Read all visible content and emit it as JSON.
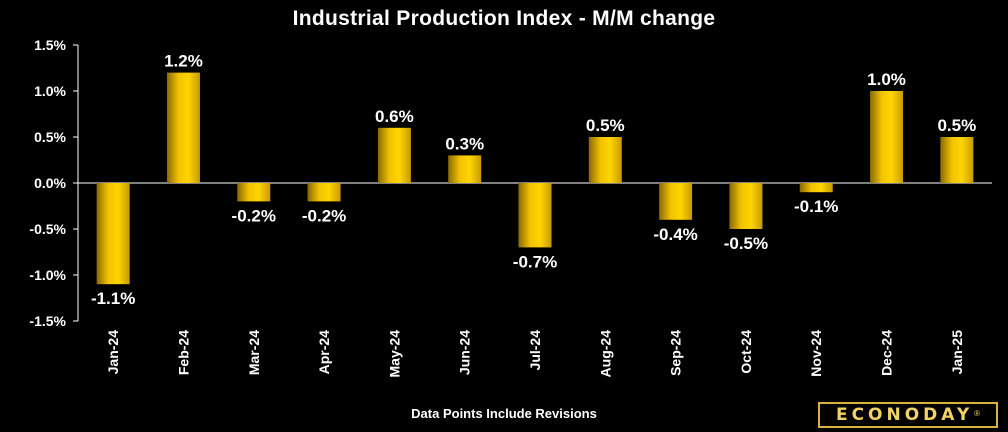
{
  "chart_data": {
    "type": "bar",
    "title": "Industrial Production Index - M/M change",
    "categories": [
      "Jan-24",
      "Feb-24",
      "Mar-24",
      "Apr-24",
      "May-24",
      "Jun-24",
      "Jul-24",
      "Aug-24",
      "Sep-24",
      "Oct-24",
      "Nov-24",
      "Dec-24",
      "Jan-25"
    ],
    "values": [
      -1.1,
      1.2,
      -0.2,
      -0.2,
      0.6,
      0.3,
      -0.7,
      0.5,
      -0.4,
      -0.5,
      -0.1,
      1.0,
      0.5
    ],
    "data_labels": [
      "-1.1%",
      "1.2%",
      "-0.2%",
      "-0.2%",
      "0.6%",
      "0.3%",
      "-0.7%",
      "0.5%",
      "-0.4%",
      "-0.5%",
      "-0.1%",
      "1.0%",
      "0.5%"
    ],
    "yticks": [
      1.5,
      1.0,
      0.5,
      0.0,
      -0.5,
      -1.0,
      -1.5
    ],
    "ytick_labels": [
      "1.5%",
      "1.0%",
      "0.5%",
      "0.0%",
      "-0.5%",
      "-1.0%",
      "-1.5%"
    ],
    "ylim": [
      -1.5,
      1.5
    ],
    "xlabel": "",
    "ylabel": "",
    "grid": false,
    "legend": "none",
    "bar_color": "#f2c200"
  },
  "footnote": "Data Points Include Revisions",
  "brand": {
    "name": "ECONODAY",
    "mark": "®"
  }
}
